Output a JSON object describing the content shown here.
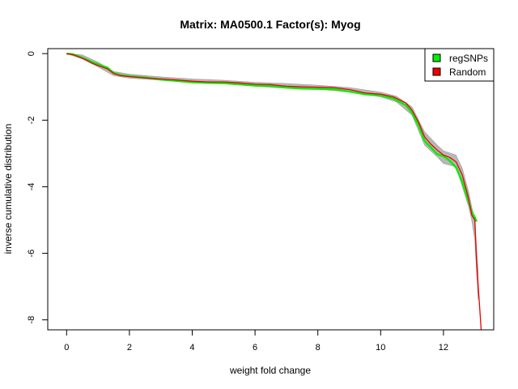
{
  "chart_data": {
    "type": "line",
    "title": "Matrix: MA0500.1 Factor(s): Myog",
    "xlabel": "weight fold change",
    "ylabel": "inverse cumulative distribution",
    "xlim": [
      -0.6,
      13.6
    ],
    "ylim": [
      -8.3,
      0.15
    ],
    "x_ticks": [
      0,
      2,
      4,
      6,
      8,
      10,
      12
    ],
    "y_ticks": [
      0,
      -2,
      -4,
      -6,
      -8
    ],
    "x_tick_labels": [
      "0",
      "2",
      "4",
      "6",
      "8",
      "10",
      "12"
    ],
    "y_tick_labels": [
      "0",
      "-2",
      "-4",
      "-6",
      "-8"
    ],
    "grid": false,
    "legend": {
      "position": "top-right",
      "entries": [
        {
          "label": "regSNPs",
          "color": "#00ee00"
        },
        {
          "label": "Random",
          "color": "#ee0000"
        }
      ]
    },
    "series": [
      {
        "name": "regSNPs",
        "color": "#00ee00",
        "x": [
          0.0,
          0.2,
          0.5,
          0.8,
          1.0,
          1.3,
          1.5,
          1.7,
          2.0,
          2.5,
          3.0,
          3.5,
          4.0,
          4.5,
          5.0,
          5.5,
          6.0,
          6.5,
          7.0,
          7.5,
          8.0,
          8.5,
          9.0,
          9.5,
          10.0,
          10.4,
          10.8,
          11.0,
          11.2,
          11.4,
          11.6,
          11.8,
          12.0,
          12.2,
          12.4,
          12.6,
          12.8,
          12.9,
          13.0,
          13.05
        ],
        "y": [
          0.0,
          -0.02,
          -0.12,
          -0.25,
          -0.32,
          -0.42,
          -0.58,
          -0.64,
          -0.68,
          -0.72,
          -0.78,
          -0.82,
          -0.86,
          -0.88,
          -0.89,
          -0.92,
          -0.96,
          -0.97,
          -1.02,
          -1.05,
          -1.06,
          -1.07,
          -1.14,
          -1.22,
          -1.26,
          -1.35,
          -1.55,
          -1.78,
          -2.15,
          -2.62,
          -2.82,
          -3.02,
          -3.08,
          -3.22,
          -3.42,
          -3.85,
          -4.45,
          -4.75,
          -4.92,
          -5.05
        ]
      },
      {
        "name": "Random",
        "color": "#ee0000",
        "x": [
          0.0,
          0.2,
          0.4,
          0.6,
          0.8,
          1.0,
          1.3,
          1.5,
          1.7,
          2.0,
          2.5,
          3.0,
          3.5,
          4.0,
          4.5,
          5.0,
          5.5,
          6.0,
          6.5,
          7.0,
          7.5,
          8.0,
          8.5,
          9.0,
          9.5,
          10.0,
          10.4,
          10.8,
          11.0,
          11.2,
          11.4,
          11.6,
          11.8,
          12.0,
          12.2,
          12.4,
          12.6,
          12.8,
          12.9,
          13.0,
          13.05,
          13.2
        ],
        "y": [
          0.0,
          -0.03,
          -0.1,
          -0.18,
          -0.28,
          -0.36,
          -0.46,
          -0.6,
          -0.66,
          -0.69,
          -0.73,
          -0.76,
          -0.79,
          -0.83,
          -0.85,
          -0.85,
          -0.88,
          -0.92,
          -0.93,
          -0.98,
          -1.0,
          -1.01,
          -1.02,
          -1.08,
          -1.18,
          -1.22,
          -1.3,
          -1.48,
          -1.7,
          -2.05,
          -2.5,
          -2.72,
          -2.9,
          -3.05,
          -3.12,
          -3.25,
          -3.65,
          -4.35,
          -4.85,
          -5.0,
          -6.2,
          -8.3
        ]
      }
    ],
    "random_band": {
      "color": "#b8b8b8",
      "x": [
        0.0,
        0.5,
        1.0,
        1.5,
        2.0,
        3.0,
        4.0,
        5.0,
        6.0,
        7.0,
        8.0,
        9.0,
        10.0,
        10.5,
        11.0,
        11.4,
        11.8,
        12.0,
        12.4,
        12.6,
        12.8,
        12.9,
        13.0,
        13.1
      ],
      "upper": [
        0.0,
        -0.04,
        -0.26,
        -0.54,
        -0.62,
        -0.7,
        -0.76,
        -0.8,
        -0.86,
        -0.9,
        -0.95,
        -1.02,
        -1.16,
        -1.28,
        -1.6,
        -2.35,
        -2.75,
        -2.92,
        -3.05,
        -3.45,
        -4.15,
        -4.6,
        -5.0,
        -6.5
      ],
      "lower": [
        0.0,
        -0.16,
        -0.4,
        -0.66,
        -0.74,
        -0.8,
        -0.87,
        -0.91,
        -0.98,
        -1.04,
        -1.07,
        -1.15,
        -1.3,
        -1.45,
        -1.85,
        -2.75,
        -3.1,
        -3.3,
        -3.4,
        -4.0,
        -4.6,
        -5.0,
        -5.6,
        -7.4
      ]
    }
  }
}
